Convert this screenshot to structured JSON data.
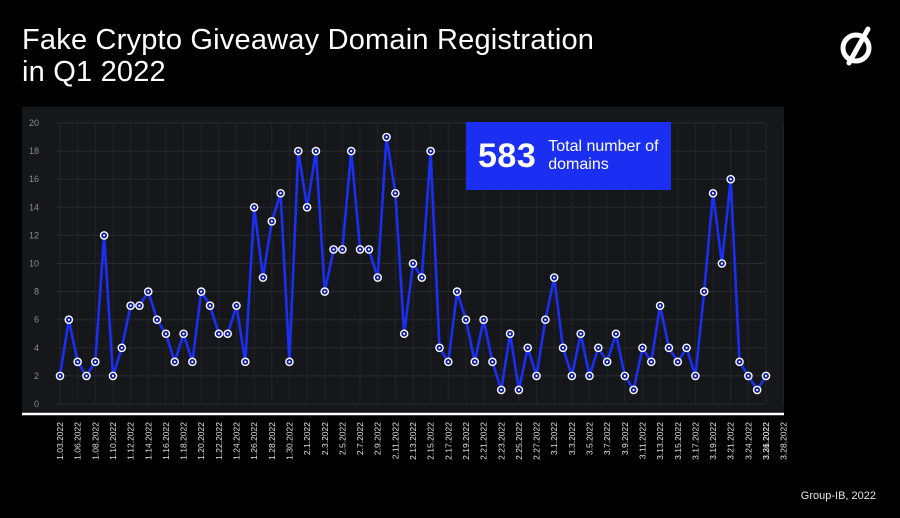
{
  "title": {
    "line1": "Fake Crypto Giveaway Domain Registration",
    "line2": "in Q1 2022"
  },
  "logo": {
    "icon": "group-ib-logo-icon"
  },
  "callout": {
    "value": "583",
    "label": "Total number of domains"
  },
  "source": "Group-IB, 2022",
  "colors": {
    "background": "#000000",
    "panel": "#16171b",
    "line": "#1a2ff2",
    "marker": "#ffffff",
    "callout": "#1a2ff2"
  },
  "chart_data": {
    "type": "line",
    "ylim": [
      0,
      20
    ],
    "yticks": [
      0,
      2,
      4,
      6,
      8,
      10,
      12,
      14,
      16,
      18,
      20
    ],
    "grid": true,
    "xticks": [
      "1.03.2022",
      "1.06.2022",
      "1.08.2022",
      "1.10.2022",
      "1.12.2022",
      "1.14.2022",
      "1.16.2022",
      "1.18.2022",
      "1.20.2022",
      "1.22.2022",
      "1.24.2022",
      "1.26.2022",
      "1.28.2022",
      "1.30.2022",
      "2.1.2022",
      "2.3.2022",
      "2.5.2022",
      "2.7.2022",
      "2.9.2022",
      "2.11.2022",
      "2.13.2022",
      "2.15.2022",
      "2.17.2022",
      "2.19.2022",
      "2.21.2022",
      "2.23.2022",
      "2.25.2022",
      "2.27.2022",
      "3.1.2022",
      "3.3.2022",
      "3.5.2022",
      "3.7.2022",
      "3.9.2022",
      "3.11.2022",
      "3.13.2022",
      "3.15.2022",
      "3.17.2022",
      "3.19.2022",
      "3.21.2022",
      "3.24.2022",
      "3.26.2022",
      "3.28.2022",
      "3.31.2022"
    ],
    "series": [
      {
        "values": [
          2,
          6,
          3,
          2,
          3,
          12,
          2,
          4,
          7,
          7,
          8,
          6,
          5,
          3,
          5,
          3,
          8,
          7,
          5,
          5,
          7,
          3,
          14,
          9,
          13,
          15,
          3,
          18,
          14,
          18,
          8,
          11,
          11,
          18,
          11,
          11,
          9,
          19,
          15,
          5,
          10,
          9,
          18,
          4,
          3,
          8,
          6,
          3,
          6,
          3,
          1,
          5,
          1,
          4,
          2,
          6,
          9,
          4,
          2,
          5,
          2,
          4,
          3,
          5,
          2,
          1,
          4,
          3,
          7,
          4,
          3,
          4,
          2,
          8,
          15,
          10,
          16,
          3,
          2,
          1,
          2
        ]
      }
    ]
  }
}
